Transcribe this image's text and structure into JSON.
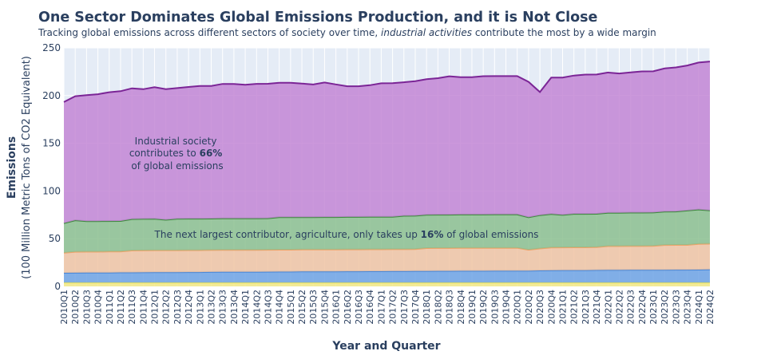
{
  "title": "One Sector Dominates Global Emissions Production, and it is Not Close",
  "subtitle": {
    "before": "Tracking global emissions across different sectors of society over time, ",
    "italic": "industrial activities",
    "after": " contribute the most by a wide margin"
  },
  "annotations": {
    "industrial": {
      "line1": "Industrial society",
      "line2_pre": "contributes to ",
      "line2_bold": "66%",
      "line3": "of global emissions"
    },
    "agriculture": {
      "pre": "The next largest contributor, agriculture, only takes up ",
      "bold": "16%",
      "post": " of global emissions"
    }
  },
  "colors": {
    "plot_bg": "#e5ecf6",
    "grid": "#ffffff",
    "text": "#2a3f5f",
    "series": [
      "#f4ea85",
      "#6fa3e4",
      "#f0c4a3",
      "#8cc08f",
      "#c386d5"
    ],
    "lines": [
      "#f2e75a",
      "#4a88d8",
      "#efa46a",
      "#3f8b3f",
      "#7b2596"
    ]
  },
  "chart_data": {
    "type": "area",
    "stacked": true,
    "ylabel_main": "Emissions",
    "ylabel_sub": "(100 Million Metric Tons of CO2 Equivalent)",
    "xlabel": "Year and Quarter",
    "ylim": [
      0,
      250
    ],
    "yticks": [
      0,
      50,
      100,
      150,
      200,
      250
    ],
    "grid": true,
    "x": [
      "2010Q1",
      "2010Q2",
      "2010Q3",
      "2010Q4",
      "2011Q1",
      "2011Q2",
      "2011Q3",
      "2011Q4",
      "2012Q1",
      "2012Q2",
      "2012Q3",
      "2012Q4",
      "2013Q1",
      "2013Q2",
      "2013Q3",
      "2013Q4",
      "2014Q1",
      "2014Q2",
      "2014Q3",
      "2014Q4",
      "2015Q1",
      "2015Q2",
      "2015Q3",
      "2015Q4",
      "2016Q1",
      "2016Q2",
      "2016Q3",
      "2016Q4",
      "2017Q1",
      "2017Q2",
      "2017Q3",
      "2017Q4",
      "2018Q1",
      "2018Q2",
      "2018Q3",
      "2018Q4",
      "2019Q1",
      "2019Q2",
      "2019Q3",
      "2019Q4",
      "2020Q1",
      "2020Q2",
      "2020Q3",
      "2020Q4",
      "2021Q1",
      "2021Q2",
      "2021Q3",
      "2021Q4",
      "2022Q1",
      "2022Q2",
      "2022Q3",
      "2022Q4",
      "2023Q1",
      "2023Q2",
      "2023Q3",
      "2023Q4",
      "2024Q1",
      "2024Q2"
    ],
    "series": [
      {
        "values": [
          4,
          4,
          4,
          4,
          4,
          4,
          4,
          4,
          4,
          4,
          4,
          4,
          4,
          4,
          4,
          4,
          4,
          4,
          4,
          4,
          4,
          4,
          4,
          4,
          4,
          4,
          4,
          4,
          4,
          4,
          4,
          4,
          4,
          4,
          4,
          4,
          4,
          4,
          4,
          4,
          4,
          4,
          4,
          4,
          4,
          4,
          4,
          4,
          4,
          4,
          4,
          4,
          4,
          4,
          4,
          4,
          4,
          4
        ]
      },
      {
        "values": [
          10.2,
          10.3,
          10.4,
          10.4,
          10.5,
          10.6,
          10.6,
          10.7,
          10.8,
          10.8,
          10.9,
          11.0,
          11.0,
          11.1,
          11.2,
          11.2,
          11.3,
          11.3,
          11.4,
          11.5,
          11.5,
          11.6,
          11.6,
          11.7,
          11.7,
          11.8,
          11.8,
          11.9,
          11.9,
          12.0,
          12.0,
          12.1,
          12.1,
          12.2,
          12.2,
          12.3,
          12.3,
          12.3,
          12.4,
          12.4,
          12.4,
          12.4,
          12.7,
          12.8,
          12.9,
          13.0,
          13.0,
          13.1,
          13.2,
          13.2,
          13.3,
          13.3,
          13.4,
          13.4,
          13.5,
          13.5,
          13.6,
          13.7
        ]
      },
      {
        "values": [
          21,
          22,
          22,
          22,
          22,
          22,
          23,
          23,
          23,
          23,
          23,
          23,
          23,
          23,
          23,
          23,
          23,
          23,
          23,
          23,
          23,
          23,
          23,
          23,
          23,
          23,
          23,
          23,
          23,
          23,
          23,
          23,
          24,
          24,
          24,
          24,
          24,
          24,
          24,
          24,
          24,
          22,
          23,
          24,
          24,
          24,
          24,
          24,
          25,
          25,
          25,
          25,
          25,
          26,
          26,
          26,
          27,
          27
        ]
      },
      {
        "values": [
          31,
          33,
          32,
          32,
          32,
          32,
          33,
          33,
          33,
          32,
          33,
          33,
          33,
          33,
          33,
          33,
          33,
          33,
          33,
          34,
          34,
          34,
          34,
          34,
          34,
          34,
          34,
          34,
          34,
          34,
          35,
          35,
          35,
          35,
          35,
          35,
          35,
          35,
          35,
          35,
          35,
          34,
          35,
          35,
          34,
          35,
          35,
          35,
          35,
          35,
          35,
          35,
          35,
          35,
          35,
          36,
          36,
          35
        ]
      },
      {
        "values": [
          127,
          130,
          132,
          133,
          135,
          136,
          137,
          136,
          138,
          137,
          137,
          138,
          139,
          139,
          141,
          141,
          140,
          141,
          141,
          141,
          141,
          140,
          139,
          141,
          139,
          137,
          137,
          138,
          140,
          140,
          140,
          141,
          142,
          143,
          145,
          144,
          144,
          145,
          145,
          145,
          145,
          142,
          129,
          143,
          144,
          145,
          146,
          146,
          147,
          146,
          147,
          148,
          148,
          150,
          151,
          152,
          154,
          156
        ]
      }
    ]
  }
}
